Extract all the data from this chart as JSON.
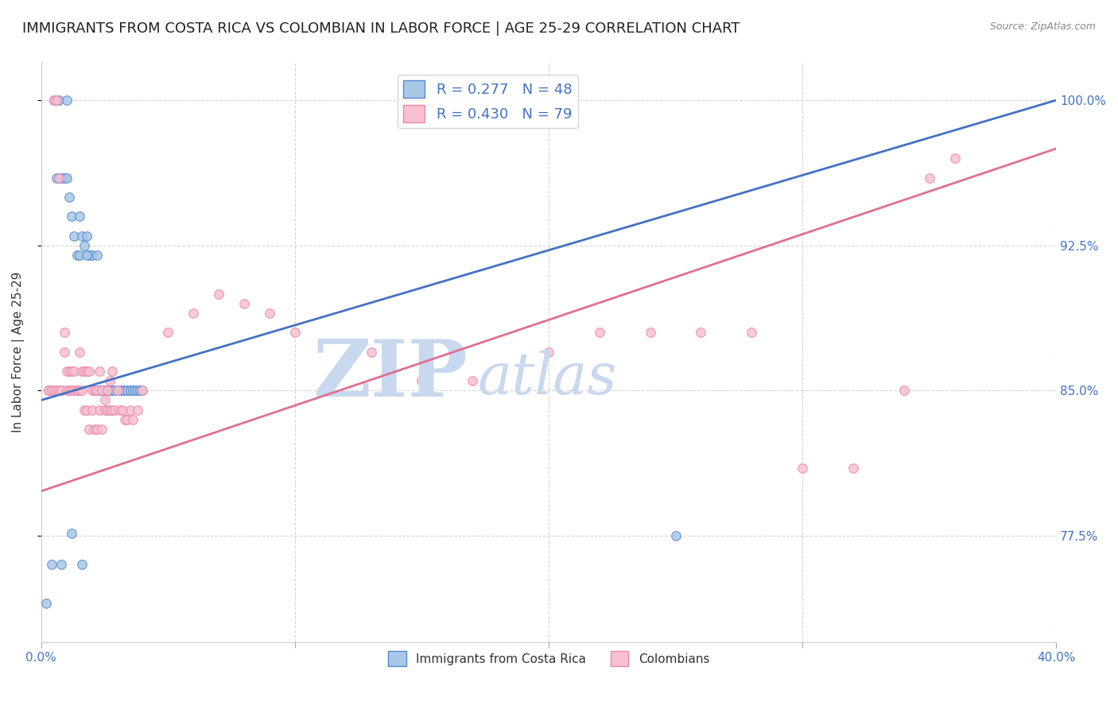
{
  "title": "IMMIGRANTS FROM COSTA RICA VS COLOMBIAN IN LABOR FORCE | AGE 25-29 CORRELATION CHART",
  "source": "Source: ZipAtlas.com",
  "ylabel": "In Labor Force | Age 25-29",
  "xlim": [
    0.0,
    0.4
  ],
  "ylim": [
    0.72,
    1.02
  ],
  "yticks": [
    0.775,
    0.85,
    0.925,
    1.0
  ],
  "ytick_labels": [
    "77.5%",
    "85.0%",
    "92.5%",
    "100.0%"
  ],
  "watermark_zip": "ZIP",
  "watermark_atlas": "atlas",
  "watermark_color": "#c8d8ee",
  "title_fontsize": 13,
  "axis_color": "#4472c4",
  "blue_scatter_x": [
    0.003,
    0.005,
    0.006,
    0.007,
    0.007,
    0.008,
    0.009,
    0.01,
    0.01,
    0.011,
    0.012,
    0.013,
    0.014,
    0.015,
    0.015,
    0.016,
    0.017,
    0.018,
    0.019,
    0.02,
    0.021,
    0.022,
    0.023,
    0.024,
    0.025,
    0.026,
    0.027,
    0.028,
    0.029,
    0.03,
    0.031,
    0.032,
    0.033,
    0.034,
    0.035,
    0.036,
    0.037,
    0.038,
    0.039,
    0.04,
    0.002,
    0.004,
    0.008,
    0.016,
    0.25,
    0.018,
    0.022,
    0.012
  ],
  "blue_scatter_y": [
    0.85,
    1.0,
    0.96,
    0.96,
    1.0,
    0.96,
    0.96,
    0.96,
    1.0,
    0.95,
    0.94,
    0.93,
    0.92,
    0.92,
    0.94,
    0.93,
    0.925,
    0.93,
    0.92,
    0.92,
    0.85,
    0.85,
    0.85,
    0.85,
    0.85,
    0.85,
    0.85,
    0.85,
    0.85,
    0.85,
    0.85,
    0.85,
    0.85,
    0.85,
    0.85,
    0.85,
    0.85,
    0.85,
    0.85,
    0.85,
    0.74,
    0.76,
    0.76,
    0.76,
    0.775,
    0.92,
    0.92,
    0.776
  ],
  "pink_scatter_x": [
    0.003,
    0.004,
    0.005,
    0.005,
    0.006,
    0.006,
    0.007,
    0.007,
    0.008,
    0.008,
    0.009,
    0.009,
    0.01,
    0.01,
    0.011,
    0.011,
    0.012,
    0.012,
    0.013,
    0.013,
    0.014,
    0.014,
    0.015,
    0.015,
    0.016,
    0.016,
    0.017,
    0.017,
    0.018,
    0.018,
    0.019,
    0.019,
    0.02,
    0.02,
    0.021,
    0.021,
    0.022,
    0.022,
    0.023,
    0.023,
    0.024,
    0.024,
    0.025,
    0.025,
    0.026,
    0.026,
    0.027,
    0.027,
    0.028,
    0.028,
    0.029,
    0.03,
    0.031,
    0.032,
    0.033,
    0.034,
    0.035,
    0.036,
    0.038,
    0.04,
    0.05,
    0.06,
    0.07,
    0.08,
    0.09,
    0.1,
    0.13,
    0.15,
    0.17,
    0.2,
    0.22,
    0.24,
    0.26,
    0.28,
    0.3,
    0.32,
    0.34,
    0.35,
    0.36
  ],
  "pink_scatter_y": [
    0.85,
    0.85,
    0.85,
    1.0,
    0.85,
    1.0,
    0.85,
    0.96,
    0.85,
    0.85,
    0.88,
    0.87,
    0.85,
    0.86,
    0.85,
    0.86,
    0.85,
    0.86,
    0.85,
    0.86,
    0.85,
    0.85,
    0.85,
    0.87,
    0.85,
    0.86,
    0.84,
    0.86,
    0.84,
    0.86,
    0.83,
    0.86,
    0.84,
    0.85,
    0.83,
    0.85,
    0.83,
    0.85,
    0.84,
    0.86,
    0.83,
    0.85,
    0.84,
    0.845,
    0.84,
    0.85,
    0.84,
    0.855,
    0.84,
    0.86,
    0.84,
    0.85,
    0.84,
    0.84,
    0.835,
    0.835,
    0.84,
    0.835,
    0.84,
    0.85,
    0.88,
    0.89,
    0.9,
    0.895,
    0.89,
    0.88,
    0.87,
    0.855,
    0.855,
    0.87,
    0.88,
    0.88,
    0.88,
    0.88,
    0.81,
    0.81,
    0.85,
    0.96,
    0.97
  ],
  "blue_R": 0.277,
  "blue_N": 48,
  "pink_R": 0.43,
  "pink_N": 79,
  "blue_line_x0": 0.0,
  "blue_line_y0": 0.845,
  "blue_line_x1": 0.4,
  "blue_line_y1": 1.0,
  "pink_line_x0": 0.0,
  "pink_line_y0": 0.798,
  "pink_line_x1": 0.4,
  "pink_line_y1": 0.975,
  "grid_color": "#cccccc",
  "bg_color": "#ffffff",
  "scatter_blue_color": "#a8c8e8",
  "scatter_blue_edge": "#5588cc",
  "scatter_pink_color": "#f8c0d0",
  "scatter_pink_edge": "#e888a8",
  "line_blue_color": "#4472c4",
  "line_pink_color": "#e07090"
}
